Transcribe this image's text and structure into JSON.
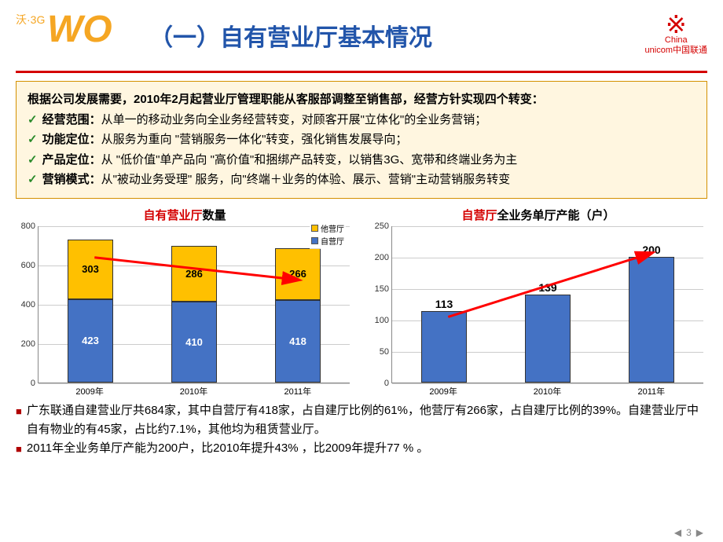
{
  "header": {
    "logo_left_text": "沃·3G",
    "logo_wo": "WO",
    "title": "（一）自有营业厅基本情况",
    "logo_right_line1": "China",
    "logo_right_line2": "unicom中国联通"
  },
  "policy": {
    "intro": "根据公司发展需要，2010年2月起营业厅管理职能从客服部调整至销售部，经营方针实现四个转变：",
    "items": [
      {
        "label": "经营范围：",
        "text": "从单一的移动业务向全业务经营转变，对顾客开展\"立体化\"的全业务营销；"
      },
      {
        "label": "功能定位：",
        "text": "从服务为重向 \"营销服务一体化\"转变，强化销售发展导向；"
      },
      {
        "label": "产品定位：",
        "text": "从 \"低价值\"单产品向 \"高价值\"和捆绑产品转变，以销售3G、宽带和终端业务为主"
      },
      {
        "label": "营销模式：",
        "text": "从\"被动业务受理\" 服务，向\"终端＋业务的体验、展示、营销\"主动营销服务转变"
      }
    ]
  },
  "chart1": {
    "title_red": "自有营业厅",
    "title_black": "数量",
    "ymax": 800,
    "ytick_step": 200,
    "categories": [
      "2009年",
      "2010年",
      "2011年"
    ],
    "series": {
      "self": {
        "label": "自营厅",
        "color": "#4472c4",
        "values": [
          423,
          410,
          418
        ]
      },
      "other": {
        "label": "他营厅",
        "color": "#ffc000",
        "values": [
          303,
          286,
          266
        ]
      }
    },
    "arrow_color": "#ff0000"
  },
  "chart2": {
    "title_red": "自营厅",
    "title_black": "全业务单厅产能（户）",
    "ymax": 250,
    "ytick_step": 50,
    "categories": [
      "2009年",
      "2010年",
      "2011年"
    ],
    "series": {
      "main": {
        "color": "#4472c4",
        "values": [
          113,
          139,
          200
        ]
      }
    },
    "arrow_color": "#ff0000"
  },
  "notes": [
    "广东联通自建营业厅共684家，其中自营厅有418家，占自建厅比例的61%，他营厅有266家，占自建厅比例的39%。自建营业厅中自有物业的有45家，占比约7.1%，其他均为租赁营业厅。",
    "2011年全业务单厅产能为200户，比2010年提升43% ，比2009年提升77 % 。"
  ],
  "footer": {
    "page": "3"
  }
}
